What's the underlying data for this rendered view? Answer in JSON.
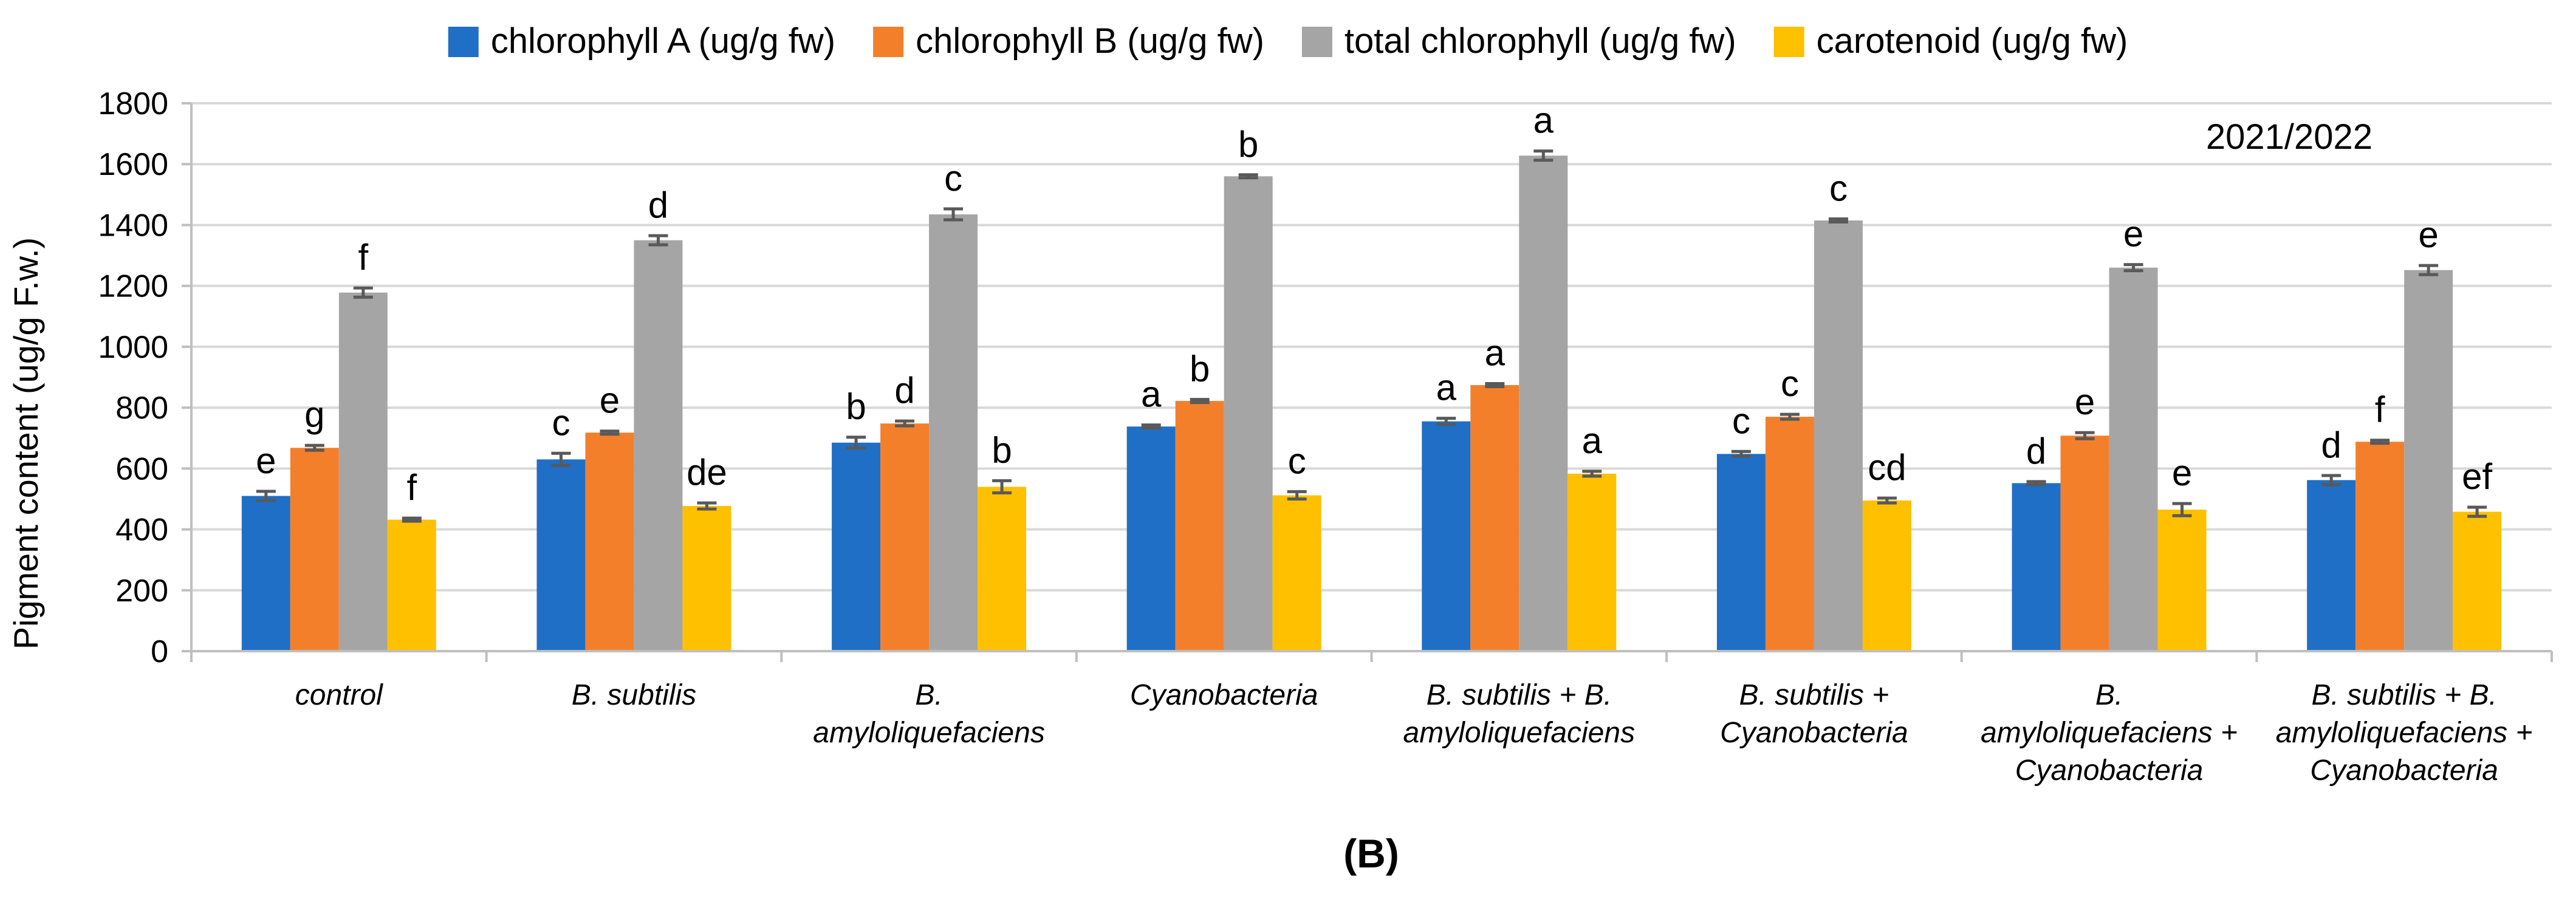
{
  "chart_data": {
    "type": "bar",
    "season_label": "2021/2022",
    "panel_label": "(B)",
    "ylabel": "Pigment content (ug/g F.w.)",
    "xlabel": "",
    "ylim": [
      0,
      1800
    ],
    "yticks": [
      0,
      200,
      400,
      600,
      800,
      1000,
      1200,
      1400,
      1600,
      1800
    ],
    "grid": true,
    "legend_position": "top",
    "categories": [
      [
        "control"
      ],
      [
        "B. subtilis"
      ],
      [
        "B.",
        "amyloliquefaciens"
      ],
      [
        "Cyanobacteria"
      ],
      [
        "B. subtilis + B.",
        "amyloliquefaciens"
      ],
      [
        "B. subtilis +",
        "Cyanobacteria"
      ],
      [
        "B.",
        "amyloliquefaciens +",
        "Cyanobacteria"
      ],
      [
        "B. subtilis  + B.",
        "amyloliquefaciens +",
        "Cyanobacteria"
      ]
    ],
    "series": [
      {
        "name": "chlorophyll A (ug/g fw)",
        "color": "#1F6FC6",
        "values": [
          510,
          630,
          685,
          738,
          755,
          648,
          552,
          562
        ],
        "errors": [
          15,
          20,
          18,
          5,
          10,
          8,
          5,
          15
        ],
        "letters": [
          "e",
          "c",
          "b",
          "a",
          "a",
          "c",
          "d",
          "d"
        ]
      },
      {
        "name": "chlorophyll B (ug/g fw)",
        "color": "#F47F2B",
        "values": [
          668,
          718,
          748,
          822,
          874,
          770,
          708,
          688
        ],
        "errors": [
          8,
          5,
          8,
          5,
          5,
          8,
          10,
          5
        ],
        "letters": [
          "g",
          "e",
          "d",
          "b",
          "a",
          "c",
          "e",
          "f"
        ]
      },
      {
        "name": "total chlorophyll (ug/g fw)",
        "color": "#A5A5A5",
        "values": [
          1178,
          1350,
          1435,
          1560,
          1628,
          1415,
          1260,
          1252
        ],
        "errors": [
          15,
          15,
          18,
          5,
          15,
          5,
          10,
          15
        ],
        "letters": [
          "f",
          "d",
          "c",
          "b",
          "a",
          "c",
          "e",
          "e"
        ]
      },
      {
        "name": "carotenoid (ug/g fw)",
        "color": "#FFC000",
        "values": [
          432,
          477,
          540,
          512,
          583,
          495,
          465,
          458
        ],
        "errors": [
          5,
          10,
          20,
          12,
          8,
          8,
          20,
          15
        ],
        "letters": [
          "f",
          "de",
          "b",
          "c",
          "a",
          "cd",
          "e",
          "ef"
        ]
      }
    ]
  }
}
